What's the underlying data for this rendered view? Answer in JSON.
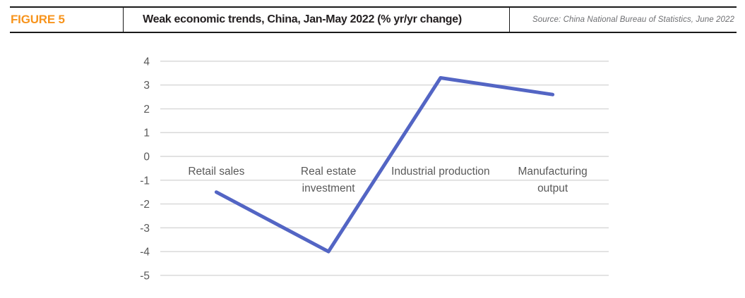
{
  "figure": {
    "label": "FIGURE 5",
    "title": "Weak economic trends, China, Jan-May 2022 (% yr/yr change)",
    "source": "Source: China National Bureau of Statistics, June 2022"
  },
  "colors": {
    "figure_label_orange": "#F7941D",
    "line_blue": "#5365C4",
    "gridline_gray": "#D9D9D9",
    "axis_text_gray": "#595959",
    "header_rule_black": "#1A1A1A"
  },
  "chart_data": {
    "type": "line",
    "title": "Weak economic trends, China, Jan-May 2022 (% yr/yr change)",
    "categories": [
      "Retail sales",
      "Real estate investment",
      "Industrial production",
      "Manufacturing output"
    ],
    "category_label_lines": [
      [
        "Retail sales"
      ],
      [
        "Real estate",
        "investment"
      ],
      [
        "Industrial production"
      ],
      [
        "Manufacturing",
        "output"
      ]
    ],
    "series": [
      {
        "name": "% yr/yr change",
        "values": [
          -1.5,
          -4.0,
          3.3,
          2.6
        ]
      }
    ],
    "ylim": [
      -5,
      4
    ],
    "yticks": [
      4,
      3,
      2,
      1,
      0,
      -1,
      -2,
      -3,
      -4,
      -5
    ],
    "xlabel": "",
    "ylabel": "",
    "grid": "horizontal",
    "legend_position": "none"
  }
}
